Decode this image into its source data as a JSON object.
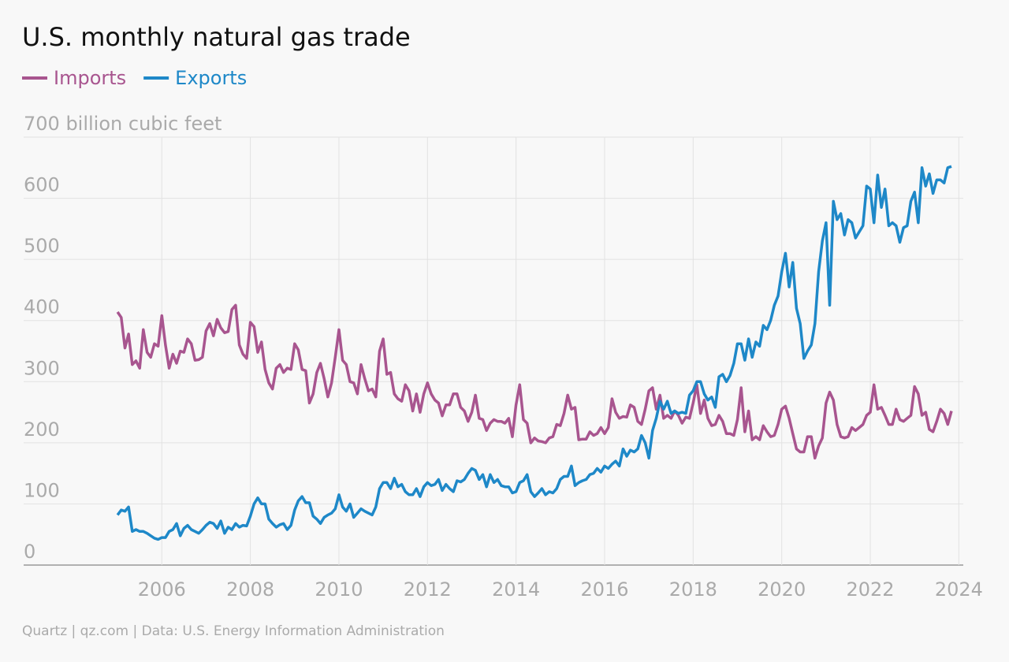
{
  "chart_data": {
    "type": "line",
    "title": "U.S. monthly natural gas trade",
    "source": "Quartz | qz.com | Data: U.S. Energy Information Administration",
    "xlim": [
      2002.88,
      2024.1
    ],
    "xticks": [
      2006,
      2008,
      2010,
      2012,
      2014,
      2016,
      2018,
      2020,
      2022,
      2024
    ],
    "ylim": [
      0,
      700
    ],
    "yticks": [
      0,
      100,
      200,
      300,
      400,
      500,
      600,
      {
        "value": 700,
        "label": "700 billion cubic feet"
      }
    ],
    "grid": true,
    "x": [
      2005,
      2005.083,
      2005.167,
      2005.25,
      2005.333,
      2005.417,
      2005.5,
      2005.583,
      2005.667,
      2005.75,
      2005.833,
      2005.917,
      2006,
      2006.083,
      2006.167,
      2006.25,
      2006.333,
      2006.417,
      2006.5,
      2006.583,
      2006.667,
      2006.75,
      2006.833,
      2006.917,
      2007,
      2007.083,
      2007.167,
      2007.25,
      2007.333,
      2007.417,
      2007.5,
      2007.583,
      2007.667,
      2007.75,
      2007.833,
      2007.917,
      2008,
      2008.083,
      2008.167,
      2008.25,
      2008.333,
      2008.417,
      2008.5,
      2008.583,
      2008.667,
      2008.75,
      2008.833,
      2008.917,
      2009,
      2009.083,
      2009.167,
      2009.25,
      2009.333,
      2009.417,
      2009.5,
      2009.583,
      2009.667,
      2009.75,
      2009.833,
      2009.917,
      2010,
      2010.083,
      2010.167,
      2010.25,
      2010.333,
      2010.417,
      2010.5,
      2010.583,
      2010.667,
      2010.75,
      2010.833,
      2010.917,
      2011,
      2011.083,
      2011.167,
      2011.25,
      2011.333,
      2011.417,
      2011.5,
      2011.583,
      2011.667,
      2011.75,
      2011.833,
      2011.917,
      2012,
      2012.083,
      2012.167,
      2012.25,
      2012.333,
      2012.417,
      2012.5,
      2012.583,
      2012.667,
      2012.75,
      2012.833,
      2012.917,
      2013,
      2013.083,
      2013.167,
      2013.25,
      2013.333,
      2013.417,
      2013.5,
      2013.583,
      2013.667,
      2013.75,
      2013.833,
      2013.917,
      2014,
      2014.083,
      2014.167,
      2014.25,
      2014.333,
      2014.417,
      2014.5,
      2014.583,
      2014.667,
      2014.75,
      2014.833,
      2014.917,
      2015,
      2015.083,
      2015.167,
      2015.25,
      2015.333,
      2015.417,
      2015.5,
      2015.583,
      2015.667,
      2015.75,
      2015.833,
      2015.917,
      2016,
      2016.083,
      2016.167,
      2016.25,
      2016.333,
      2016.417,
      2016.5,
      2016.583,
      2016.667,
      2016.75,
      2016.833,
      2016.917,
      2017,
      2017.083,
      2017.167,
      2017.25,
      2017.333,
      2017.417,
      2017.5,
      2017.583,
      2017.667,
      2017.75,
      2017.833,
      2017.917,
      2018,
      2018.083,
      2018.167,
      2018.25,
      2018.333,
      2018.417,
      2018.5,
      2018.583,
      2018.667,
      2018.75,
      2018.833,
      2018.917,
      2019,
      2019.083,
      2019.167,
      2019.25,
      2019.333,
      2019.417,
      2019.5,
      2019.583,
      2019.667,
      2019.75,
      2019.833,
      2019.917,
      2020,
      2020.083,
      2020.167,
      2020.25,
      2020.333,
      2020.417,
      2020.5,
      2020.583,
      2020.667,
      2020.75,
      2020.833,
      2020.917,
      2021,
      2021.083,
      2021.167,
      2021.25,
      2021.333,
      2021.417,
      2021.5,
      2021.583,
      2021.667,
      2021.75,
      2021.833,
      2021.917,
      2022,
      2022.083,
      2022.167,
      2022.25,
      2022.333,
      2022.417,
      2022.5,
      2022.583,
      2022.667,
      2022.75,
      2022.833,
      2022.917,
      2023,
      2023.083,
      2023.167,
      2023.25,
      2023.333,
      2023.417,
      2023.5,
      2023.583,
      2023.667,
      2023.75,
      2023.833
    ],
    "series": [
      {
        "name": "Imports",
        "color": "#a8558f",
        "values": [
          414,
          405,
          355,
          378,
          328,
          334,
          322,
          385,
          348,
          340,
          362,
          358,
          408,
          360,
          322,
          345,
          330,
          350,
          348,
          370,
          362,
          335,
          336,
          340,
          383,
          395,
          375,
          402,
          388,
          380,
          382,
          418,
          425,
          360,
          345,
          338,
          397,
          390,
          348,
          365,
          320,
          298,
          288,
          322,
          328,
          315,
          322,
          320,
          362,
          352,
          320,
          318,
          265,
          280,
          315,
          330,
          305,
          275,
          298,
          340,
          385,
          335,
          328,
          300,
          298,
          280,
          328,
          305,
          285,
          288,
          275,
          350,
          370,
          312,
          315,
          280,
          272,
          268,
          295,
          285,
          252,
          280,
          250,
          280,
          298,
          280,
          270,
          265,
          244,
          262,
          262,
          280,
          280,
          258,
          252,
          235,
          250,
          278,
          240,
          238,
          220,
          232,
          238,
          235,
          235,
          232,
          240,
          210,
          262,
          295,
          238,
          232,
          200,
          208,
          203,
          202,
          200,
          208,
          210,
          230,
          228,
          248,
          278,
          255,
          258,
          205,
          206,
          206,
          218,
          212,
          215,
          225,
          215,
          225,
          272,
          250,
          240,
          243,
          242,
          262,
          258,
          235,
          230,
          255,
          285,
          290,
          255,
          278,
          240,
          245,
          240,
          252,
          245,
          232,
          242,
          240,
          265,
          295,
          248,
          270,
          240,
          228,
          230,
          245,
          235,
          215,
          215,
          212,
          238,
          290,
          218,
          252,
          205,
          210,
          205,
          228,
          218,
          210,
          212,
          230,
          255,
          260,
          240,
          215,
          190,
          185,
          185,
          210,
          210,
          175,
          195,
          208,
          265,
          283,
          270,
          230,
          210,
          208,
          210,
          225,
          220,
          225,
          230,
          245,
          250,
          295,
          255,
          258,
          245,
          230,
          230,
          255,
          238,
          235,
          240,
          245,
          292,
          280,
          245,
          250,
          222,
          218,
          235,
          255,
          248,
          230,
          252
        ]
      },
      {
        "name": "Exports",
        "color": "#1e88c8",
        "values": [
          82,
          90,
          88,
          95,
          55,
          58,
          55,
          55,
          52,
          48,
          44,
          42,
          45,
          45,
          55,
          58,
          68,
          48,
          60,
          65,
          58,
          55,
          52,
          58,
          65,
          70,
          68,
          60,
          72,
          52,
          62,
          58,
          68,
          62,
          65,
          64,
          80,
          100,
          110,
          100,
          100,
          75,
          68,
          62,
          66,
          68,
          58,
          65,
          90,
          105,
          112,
          102,
          102,
          80,
          75,
          68,
          78,
          82,
          85,
          92,
          115,
          95,
          88,
          100,
          78,
          85,
          92,
          88,
          85,
          82,
          95,
          125,
          135,
          135,
          125,
          142,
          128,
          132,
          120,
          115,
          115,
          125,
          112,
          128,
          135,
          130,
          132,
          140,
          122,
          132,
          125,
          120,
          138,
          136,
          140,
          150,
          158,
          155,
          140,
          148,
          128,
          148,
          135,
          140,
          130,
          128,
          128,
          118,
          120,
          135,
          138,
          148,
          120,
          112,
          118,
          125,
          115,
          120,
          118,
          125,
          140,
          145,
          145,
          162,
          130,
          135,
          138,
          140,
          148,
          150,
          158,
          152,
          162,
          158,
          165,
          170,
          162,
          190,
          178,
          188,
          185,
          190,
          212,
          200,
          175,
          220,
          240,
          268,
          255,
          268,
          248,
          252,
          248,
          250,
          248,
          278,
          285,
          300,
          300,
          280,
          270,
          275,
          258,
          308,
          312,
          300,
          310,
          330,
          362,
          362,
          335,
          370,
          340,
          365,
          358,
          392,
          385,
          400,
          425,
          440,
          480,
          510,
          455,
          495,
          420,
          395,
          338,
          350,
          360,
          395,
          480,
          530,
          560,
          425,
          595,
          565,
          575,
          540,
          565,
          560,
          535,
          545,
          555,
          620,
          615,
          560,
          638,
          585,
          615,
          555,
          560,
          555,
          528,
          552,
          555,
          595,
          610,
          560,
          650,
          620,
          640,
          608,
          630,
          630,
          625,
          650,
          652
        ]
      }
    ]
  }
}
